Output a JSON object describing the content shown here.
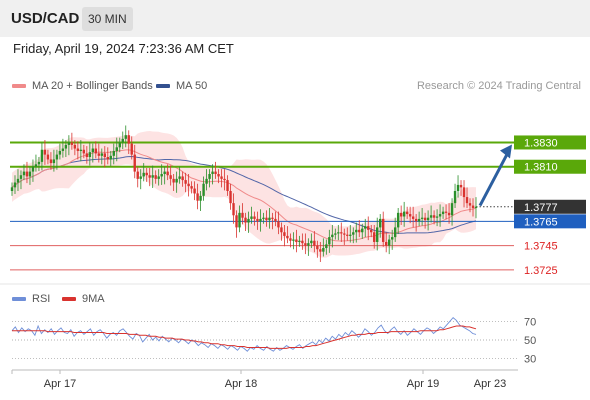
{
  "header": {
    "pair": "USD/CAD",
    "timeframe": "30 MIN"
  },
  "datetime": "Friday, April 19, 2024 7:23:36 AM CET",
  "legend": {
    "bollinger": "MA 20 + Bollinger Bands",
    "ma50": "MA 50",
    "credit": "Research © 2024 Trading Central"
  },
  "rsi_legend": {
    "rsi": "RSI",
    "ma": "9MA"
  },
  "colors": {
    "candle_up": "#2a8f2a",
    "candle_down": "#d9332f",
    "band_fill": "#fcd9d9",
    "ma20": "#f08a8a",
    "ma50": "#5266a8",
    "resistance": "#5aa80a",
    "support_blue": "#1f5fbf",
    "support_red": "#e06060",
    "current": "#333333",
    "arrow": "#2c5fa0",
    "rsi": "#6f8fd8",
    "rsi_ma": "#d9332f"
  },
  "chart_data": [
    {
      "type": "candlestick",
      "title": "",
      "x_ticks": [
        "Apr 17",
        "Apr 18",
        "Apr 19",
        "Apr 23"
      ],
      "ylim": [
        1.3715,
        1.3865
      ],
      "levels": [
        {
          "value": 1.383,
          "label": "1.3830",
          "kind": "resistance"
        },
        {
          "value": 1.381,
          "label": "1.3810",
          "kind": "resistance"
        },
        {
          "value": 1.3777,
          "label": "1.3777",
          "kind": "current"
        },
        {
          "value": 1.3765,
          "label": "1.3765",
          "kind": "support_blue"
        },
        {
          "value": 1.3745,
          "label": "1.3745",
          "kind": "support_red"
        },
        {
          "value": 1.3725,
          "label": "1.3725",
          "kind": "support_red"
        }
      ],
      "close": [
        1.3793,
        1.3797,
        1.38,
        1.3803,
        1.3806,
        1.3802,
        1.3806,
        1.381,
        1.3812,
        1.3814,
        1.3824,
        1.382,
        1.3816,
        1.3813,
        1.3816,
        1.382,
        1.3823,
        1.3825,
        1.3828,
        1.383,
        1.3828,
        1.3825,
        1.3823,
        1.3824,
        1.3821,
        1.3818,
        1.3822,
        1.3825,
        1.3821,
        1.3819,
        1.3821,
        1.3818,
        1.3816,
        1.3819,
        1.3823,
        1.3826,
        1.383,
        1.3833,
        1.3836,
        1.3829,
        1.382,
        1.3806,
        1.38,
        1.3802,
        1.3805,
        1.3803,
        1.3801,
        1.3803,
        1.38,
        1.3802,
        1.3804,
        1.3806,
        1.3803,
        1.38,
        1.3797,
        1.38,
        1.3802,
        1.3799,
        1.3796,
        1.3794,
        1.3792,
        1.3788,
        1.3782,
        1.3786,
        1.3796,
        1.38,
        1.3804,
        1.3806,
        1.3804,
        1.3802,
        1.38,
        1.3799,
        1.379,
        1.378,
        1.377,
        1.376,
        1.3772,
        1.3768,
        1.3764,
        1.3767,
        1.3769,
        1.3767,
        1.3765,
        1.3767,
        1.3768,
        1.3766,
        1.3768,
        1.3767,
        1.3765,
        1.376,
        1.3756,
        1.3753,
        1.3751,
        1.3749,
        1.375,
        1.3748,
        1.3749,
        1.3747,
        1.3745,
        1.3747,
        1.3749,
        1.3745,
        1.3742,
        1.374,
        1.3743,
        1.3746,
        1.3752,
        1.3754,
        1.3755,
        1.3756,
        1.3755,
        1.3754,
        1.3753,
        1.3754,
        1.3756,
        1.3758,
        1.3756,
        1.3759,
        1.3761,
        1.3758,
        1.3756,
        1.3748,
        1.376,
        1.3767,
        1.3748,
        1.3745,
        1.375,
        1.3752,
        1.376,
        1.3772,
        1.3769,
        1.3773,
        1.3771,
        1.3769,
        1.3767,
        1.3765,
        1.3767,
        1.3768,
        1.3766,
        1.3768,
        1.377,
        1.3768,
        1.3769,
        1.3771,
        1.3773,
        1.3772,
        1.377,
        1.378,
        1.379,
        1.3795,
        1.3793,
        1.3785,
        1.378,
        1.3778,
        1.3776,
        1.3777
      ]
    },
    {
      "type": "line",
      "title": "",
      "ylim": [
        20,
        80
      ],
      "y_ticks": [
        70,
        50,
        30
      ],
      "series": [
        {
          "name": "RSI",
          "values": [
            60,
            64,
            58,
            63,
            59,
            62,
            60,
            55,
            65,
            57,
            61,
            58,
            62,
            56,
            60,
            63,
            58,
            57,
            61,
            54,
            58,
            60,
            56,
            59,
            62,
            55,
            59,
            61,
            57,
            52,
            56,
            58,
            55,
            60,
            62,
            58,
            54,
            51,
            57,
            55,
            48,
            52,
            56,
            50,
            53,
            49,
            54,
            51,
            48,
            52,
            50,
            47,
            51,
            49,
            46,
            50,
            48,
            44,
            47,
            45,
            42,
            46,
            44,
            41,
            45,
            43,
            40,
            44,
            42,
            39,
            43,
            41,
            38,
            42,
            40,
            44,
            41,
            39,
            43,
            40,
            38,
            42,
            39,
            41,
            44,
            42,
            40,
            43,
            45,
            41,
            44,
            46,
            48,
            45,
            50,
            47,
            52,
            49,
            54,
            51,
            56,
            53,
            58,
            55,
            60,
            57,
            53,
            56,
            62,
            59,
            55,
            58,
            63,
            66,
            60,
            57,
            61,
            64,
            59,
            56,
            60,
            55,
            58,
            62,
            59,
            56,
            60,
            63,
            61,
            57,
            60,
            64,
            62,
            66,
            70,
            74,
            71,
            66,
            64,
            62,
            60,
            57,
            56
          ]
        },
        {
          "name": "9MA",
          "values": [
            60,
            60,
            60,
            60,
            60,
            60,
            60,
            60,
            60,
            60,
            60,
            59,
            59,
            59,
            59,
            59,
            59,
            59,
            59,
            58,
            58,
            58,
            58,
            58,
            58,
            58,
            58,
            58,
            58,
            57,
            57,
            57,
            57,
            57,
            57,
            57,
            56,
            56,
            56,
            55,
            55,
            55,
            54,
            54,
            54,
            53,
            53,
            52,
            52,
            52,
            51,
            51,
            51,
            50,
            50,
            49,
            49,
            48,
            48,
            47,
            47,
            46,
            46,
            46,
            45,
            45,
            44,
            44,
            44,
            43,
            43,
            43,
            42,
            42,
            42,
            42,
            42,
            42,
            42,
            41,
            41,
            41,
            41,
            41,
            41,
            42,
            42,
            42,
            42,
            42,
            43,
            43,
            44,
            44,
            45,
            46,
            47,
            48,
            49,
            50,
            51,
            52,
            53,
            54,
            55,
            55,
            56,
            56,
            56,
            57,
            57,
            57,
            58,
            58,
            58,
            58,
            59,
            59,
            59,
            59,
            59,
            59,
            59,
            59,
            59,
            60,
            60,
            60,
            60,
            60,
            60,
            61,
            61,
            62,
            63,
            64,
            65,
            65,
            65,
            64,
            64,
            63,
            62
          ]
        }
      ]
    }
  ],
  "arrow": {
    "from": 1.3778,
    "to": 1.383
  }
}
